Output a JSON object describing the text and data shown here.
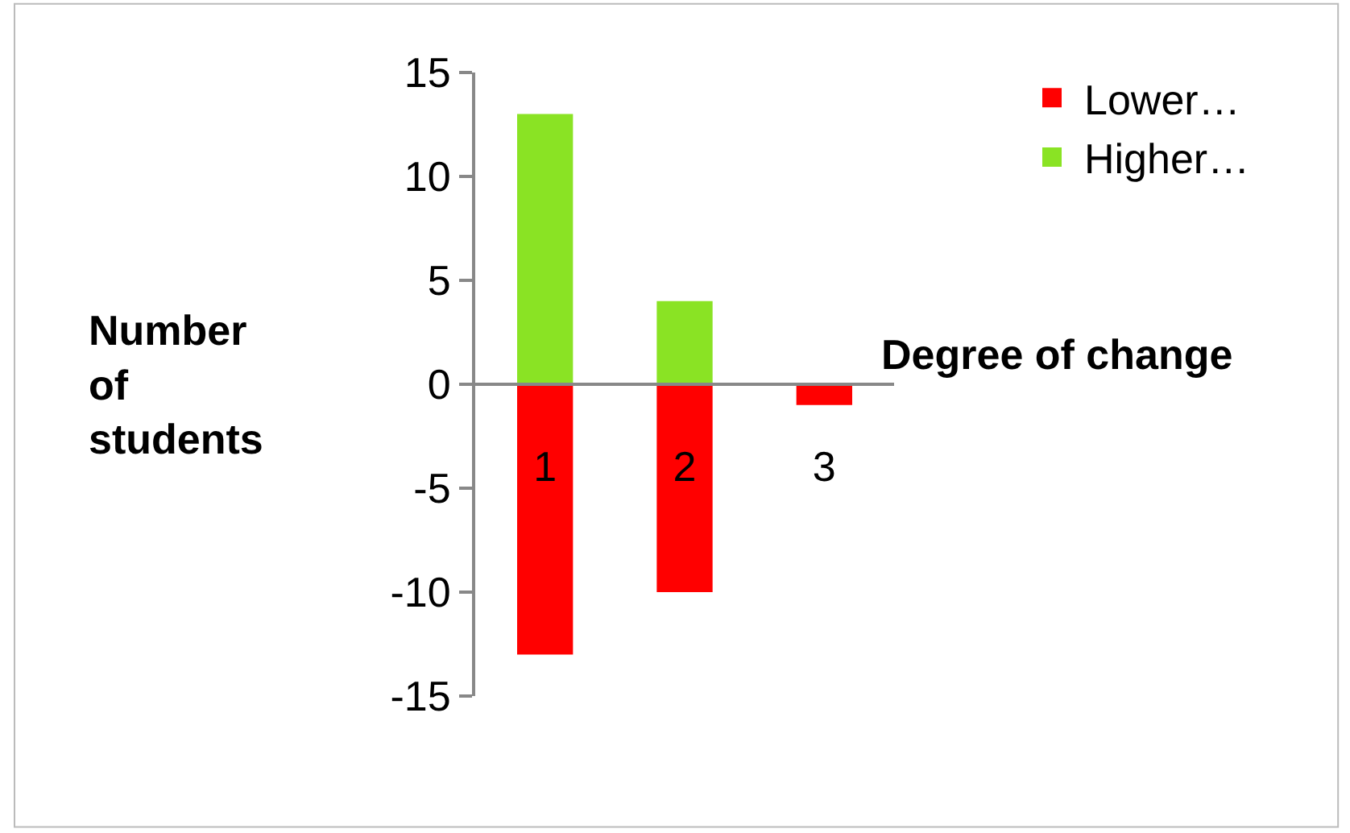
{
  "chart_data": {
    "type": "bar",
    "stacked": true,
    "xlabel": "Degree of change",
    "ylabel": "Number of students",
    "categories": [
      "1",
      "2",
      "3"
    ],
    "series": [
      {
        "name": "Lower…",
        "color": "#ff0000",
        "values": [
          -13,
          -10,
          -1
        ]
      },
      {
        "name": "Higher…",
        "color": "#8ae324",
        "values": [
          13,
          4,
          null
        ]
      }
    ],
    "ylim": [
      -15,
      15
    ],
    "yticks": [
      -15,
      -10,
      -5,
      0,
      5,
      10,
      15
    ],
    "legend": "top right"
  }
}
